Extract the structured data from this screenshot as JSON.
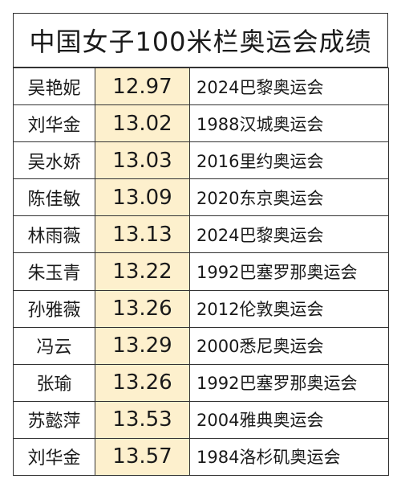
{
  "title": "中国女子100米栏奥运会成绩",
  "rows": [
    {
      "name": "吴艳妮",
      "time": "12.97",
      "games": "2024巴黎奥运会"
    },
    {
      "name": "刘华金",
      "time": "13.02",
      "games": "1988汉城奥运会"
    },
    {
      "name": "吴水娇",
      "time": "13.03",
      "games": "2016里约奥运会"
    },
    {
      "name": "陈佳敏",
      "time": "13.09",
      "games": "2020东京奥运会"
    },
    {
      "name": "林雨薇",
      "time": "13.13",
      "games": "2024巴黎奥运会"
    },
    {
      "name": "朱玉青",
      "time": "13.22",
      "games": "1992巴塞罗那奥运会"
    },
    {
      "name": "孙雅薇",
      "time": "13.26",
      "games": "2012伦敦奥运会"
    },
    {
      "name": "冯云",
      "time": "13.29",
      "games": "2000悉尼奥运会"
    },
    {
      "name": "张瑜",
      "time": "13.26",
      "games": "1992巴塞罗那奥运会"
    },
    {
      "name": "苏懿萍",
      "time": "13.53",
      "games": "2004雅典奥运会"
    },
    {
      "name": "刘华金",
      "time": "13.57",
      "games": "1984洛杉矶奥运会"
    }
  ],
  "colors": {
    "time_cell_bg": "#fdf0cd",
    "border": "#333333",
    "text": "#1a1a1a"
  }
}
